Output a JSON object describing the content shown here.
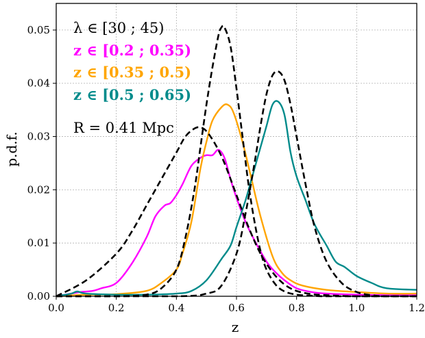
{
  "chart_data": {
    "type": "line",
    "xlabel": "z",
    "ylabel": "p.d.f.",
    "xlim": [
      0.0,
      1.2
    ],
    "ylim": [
      0.0,
      0.055
    ],
    "grid": true,
    "x_ticks": [
      "0.0",
      "0.2",
      "0.4",
      "0.6",
      "0.8",
      "1.0",
      "1.2"
    ],
    "y_ticks": [
      "0.00",
      "0.01",
      "0.02",
      "0.03",
      "0.04",
      "0.05"
    ],
    "x_tick_values": [
      0.0,
      0.2,
      0.4,
      0.6,
      0.8,
      1.0,
      1.2
    ],
    "y_tick_values": [
      0.0,
      0.01,
      0.02,
      0.03,
      0.04,
      0.05
    ],
    "annotations": {
      "lambda": "λ ∈ [30 ; 45)",
      "radius": "R = 0.41 Mpc"
    },
    "series": [
      {
        "name": "z ∈ [0.2 ; 0.35)",
        "color": "#ff00ff",
        "style": "solid",
        "x": [
          0.0,
          0.05,
          0.08,
          0.12,
          0.15,
          0.2,
          0.25,
          0.3,
          0.33,
          0.36,
          0.38,
          0.4,
          0.42,
          0.45,
          0.48,
          0.5,
          0.52,
          0.54,
          0.56,
          0.58,
          0.6,
          0.63,
          0.66,
          0.7,
          0.73,
          0.76,
          0.8,
          0.85,
          0.9,
          1.0,
          1.1,
          1.2
        ],
        "y": [
          0.0,
          0.0005,
          0.0008,
          0.001,
          0.0015,
          0.0025,
          0.006,
          0.011,
          0.015,
          0.017,
          0.0175,
          0.019,
          0.021,
          0.0245,
          0.026,
          0.0265,
          0.0265,
          0.0275,
          0.026,
          0.022,
          0.0185,
          0.014,
          0.0105,
          0.0065,
          0.0045,
          0.003,
          0.0015,
          0.0008,
          0.0005,
          0.0003,
          0.0002,
          0.0002
        ]
      },
      {
        "name": "z ∈ [0.35 ; 0.5)",
        "color": "#ffa500",
        "style": "solid",
        "x": [
          0.0,
          0.1,
          0.2,
          0.3,
          0.35,
          0.4,
          0.42,
          0.45,
          0.48,
          0.5,
          0.52,
          0.55,
          0.57,
          0.59,
          0.62,
          0.65,
          0.68,
          0.72,
          0.75,
          0.78,
          0.82,
          0.9,
          1.0,
          1.1,
          1.2
        ],
        "y": [
          0.0,
          0.0003,
          0.0004,
          0.001,
          0.0025,
          0.005,
          0.008,
          0.014,
          0.024,
          0.029,
          0.033,
          0.0355,
          0.036,
          0.0345,
          0.029,
          0.022,
          0.015,
          0.0075,
          0.0045,
          0.003,
          0.002,
          0.0012,
          0.0008,
          0.0005,
          0.0005
        ]
      },
      {
        "name": "z ∈ [0.5 ; 0.65)",
        "color": "#008b8b",
        "style": "solid",
        "x": [
          0.0,
          0.05,
          0.07,
          0.1,
          0.2,
          0.3,
          0.4,
          0.45,
          0.5,
          0.55,
          0.58,
          0.6,
          0.63,
          0.65,
          0.68,
          0.7,
          0.72,
          0.74,
          0.76,
          0.78,
          0.8,
          0.83,
          0.86,
          0.9,
          0.93,
          0.96,
          1.0,
          1.05,
          1.1,
          1.2
        ],
        "y": [
          0.0,
          0.0005,
          0.0009,
          0.0005,
          0.0003,
          0.0003,
          0.0005,
          0.001,
          0.003,
          0.007,
          0.0095,
          0.013,
          0.018,
          0.022,
          0.028,
          0.032,
          0.036,
          0.0365,
          0.034,
          0.027,
          0.0225,
          0.018,
          0.0135,
          0.0095,
          0.0065,
          0.0055,
          0.0038,
          0.0025,
          0.0015,
          0.0012
        ]
      },
      {
        "name": "",
        "color": "#000000",
        "style": "dashed",
        "x": [
          0.0,
          0.1,
          0.2,
          0.25,
          0.3,
          0.35,
          0.4,
          0.43,
          0.46,
          0.48,
          0.5,
          0.53,
          0.56,
          0.6,
          0.64,
          0.68,
          0.72,
          0.76,
          0.8,
          0.85,
          0.9,
          1.0,
          1.2
        ],
        "y": [
          0.0,
          0.003,
          0.008,
          0.012,
          0.017,
          0.022,
          0.027,
          0.03,
          0.0315,
          0.0317,
          0.031,
          0.0285,
          0.025,
          0.019,
          0.013,
          0.008,
          0.0045,
          0.0022,
          0.001,
          0.0004,
          0.0002,
          0.0,
          0.0
        ]
      },
      {
        "name": "",
        "color": "#000000",
        "style": "dashed",
        "x": [
          0.0,
          0.2,
          0.3,
          0.35,
          0.4,
          0.43,
          0.46,
          0.48,
          0.5,
          0.52,
          0.54,
          0.55,
          0.56,
          0.58,
          0.6,
          0.62,
          0.64,
          0.66,
          0.68,
          0.7,
          0.73,
          0.76,
          0.8,
          0.85,
          0.9,
          1.0,
          1.2
        ],
        "y": [
          0.0,
          0.0,
          0.0003,
          0.0015,
          0.005,
          0.011,
          0.02,
          0.028,
          0.036,
          0.043,
          0.049,
          0.0505,
          0.0505,
          0.047,
          0.039,
          0.03,
          0.021,
          0.014,
          0.0085,
          0.005,
          0.0022,
          0.0009,
          0.0003,
          0.0001,
          0.0,
          0.0,
          0.0
        ]
      },
      {
        "name": "",
        "color": "#000000",
        "style": "dashed",
        "x": [
          0.0,
          0.4,
          0.5,
          0.55,
          0.6,
          0.63,
          0.66,
          0.68,
          0.7,
          0.72,
          0.74,
          0.76,
          0.78,
          0.8,
          0.83,
          0.86,
          0.9,
          0.95,
          1.0,
          1.05,
          1.1,
          1.2
        ],
        "y": [
          0.0,
          0.0,
          0.0005,
          0.002,
          0.008,
          0.0155,
          0.025,
          0.032,
          0.038,
          0.0415,
          0.0422,
          0.0405,
          0.036,
          0.03,
          0.021,
          0.013,
          0.0065,
          0.0025,
          0.0008,
          0.0002,
          0.0,
          0.0
        ]
      }
    ]
  }
}
